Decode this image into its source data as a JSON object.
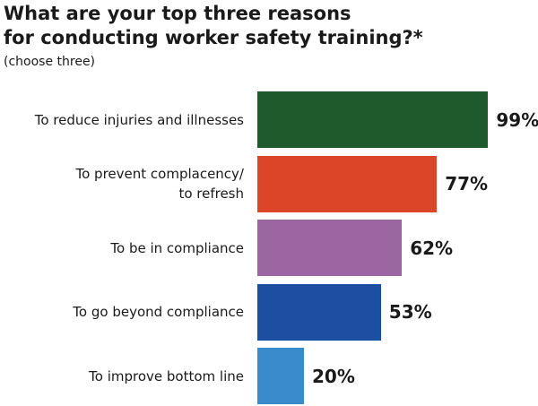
{
  "chart_data": {
    "type": "bar",
    "orientation": "horizontal",
    "title": "What are your top three reasons\nfor conducting worker safety training?*",
    "subtitle": "(choose three)",
    "categories": [
      "To reduce injuries and illnesses",
      "To prevent complacency/\nto refresh",
      "To be in compliance",
      "To go beyond compliance",
      "To improve bottom line"
    ],
    "values": [
      99,
      77,
      62,
      53,
      20
    ],
    "value_labels": [
      "99%",
      "77%",
      "62%",
      "53%",
      "20%"
    ],
    "colors": [
      "#1e5a2c",
      "#dc4528",
      "#9b66a2",
      "#1c4f9f",
      "#3a8bcb"
    ]
  }
}
